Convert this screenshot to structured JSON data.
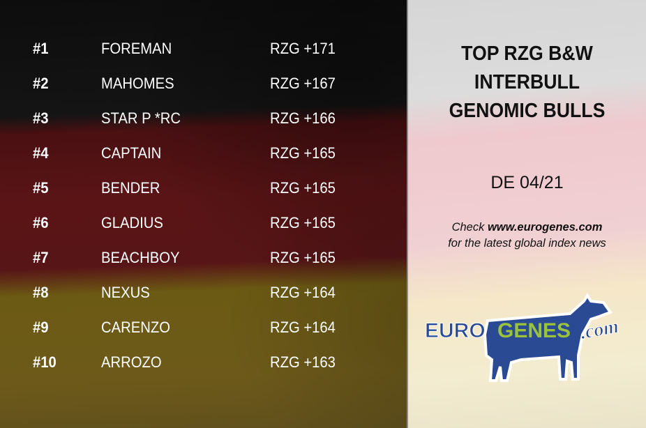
{
  "ranking": [
    {
      "rank": "#1",
      "name": "FOREMAN",
      "score": "RZG +171"
    },
    {
      "rank": "#2",
      "name": "MAHOMES",
      "score": "RZG +167"
    },
    {
      "rank": "#3",
      "name": "STAR P *RC",
      "score": "RZG +166"
    },
    {
      "rank": "#4",
      "name": "CAPTAIN",
      "score": "RZG +165"
    },
    {
      "rank": "#5",
      "name": "BENDER",
      "score": "RZG +165"
    },
    {
      "rank": "#6",
      "name": "GLADIUS",
      "score": "RZG +165"
    },
    {
      "rank": "#7",
      "name": "BEACHBOY",
      "score": "RZG +165"
    },
    {
      "rank": "#8",
      "name": "NEXUS",
      "score": "RZG +164"
    },
    {
      "rank": "#9",
      "name": "CARENZO",
      "score": "RZG +164"
    },
    {
      "rank": "#10",
      "name": "ARROZO",
      "score": "RZG +163"
    }
  ],
  "panel": {
    "title_lines": [
      "TOP RZG B&W",
      "INTERBULL",
      "GENOMIC BULLS"
    ],
    "edition": "DE 04/21",
    "check_prefix": "Check ",
    "check_link": "www.eurogenes.com",
    "check_suffix": "for the latest global index news"
  },
  "logo": {
    "text_euro": "EURO",
    "text_genes": "GENES",
    "text_com": ".com",
    "colors": {
      "blue": "#2a4a94",
      "green": "#9bc23c"
    }
  },
  "background": {
    "flag": "Germany",
    "colors": [
      "#0d0d0d",
      "#5a1416",
      "#6d5a1a"
    ]
  }
}
